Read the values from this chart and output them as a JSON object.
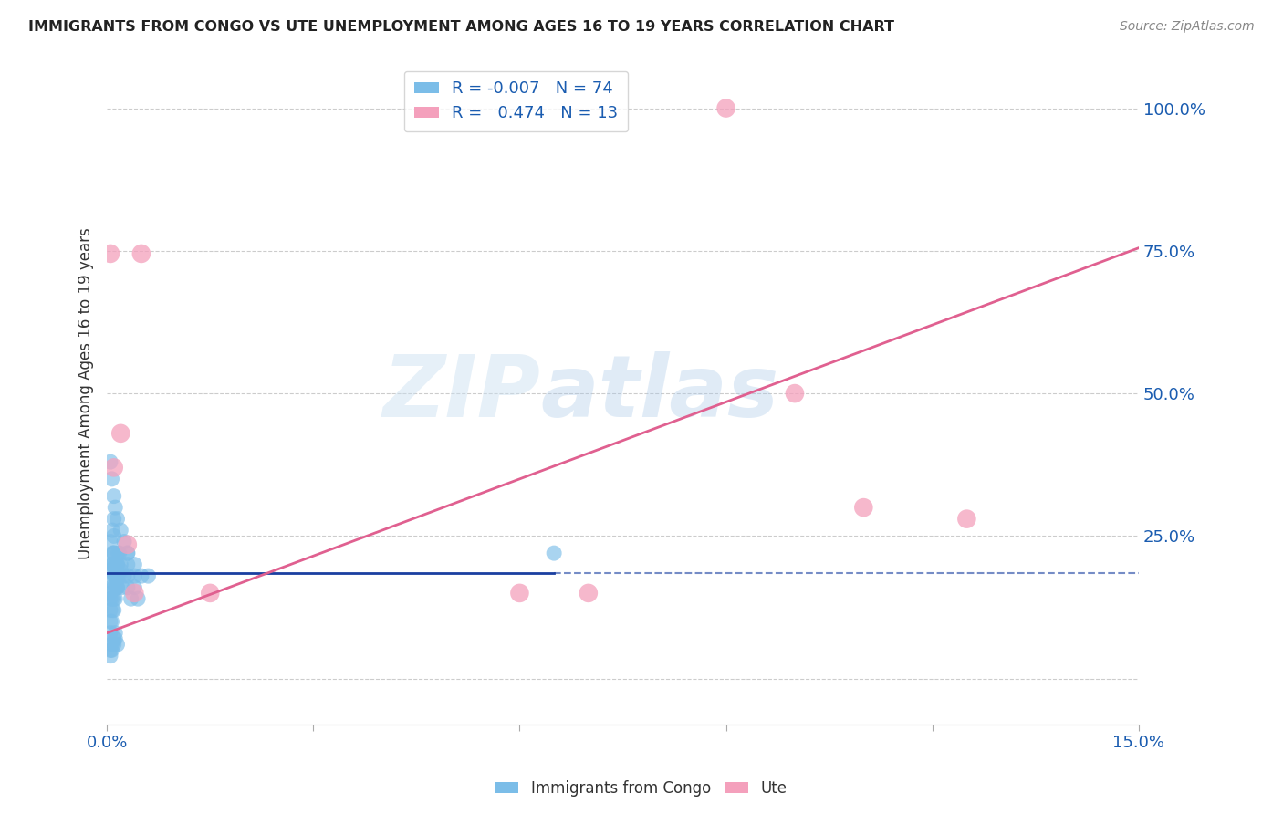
{
  "title": "IMMIGRANTS FROM CONGO VS UTE UNEMPLOYMENT AMONG AGES 16 TO 19 YEARS CORRELATION CHART",
  "source": "Source: ZipAtlas.com",
  "ylabel": "Unemployment Among Ages 16 to 19 years",
  "xlim": [
    0.0,
    0.15
  ],
  "ylim": [
    -0.08,
    1.08
  ],
  "xticks": [
    0.0,
    0.03,
    0.06,
    0.09,
    0.12,
    0.15
  ],
  "xtick_labels": [
    "0.0%",
    "",
    "",
    "",
    "",
    "15.0%"
  ],
  "ytick_right": [
    0.0,
    0.25,
    0.5,
    0.75,
    1.0
  ],
  "ytick_right_labels": [
    "",
    "25.0%",
    "50.0%",
    "75.0%",
    "100.0%"
  ],
  "congo_color": "#7bbde8",
  "ute_color": "#f4a0bc",
  "congo_line_color": "#1a3fa0",
  "ute_line_color": "#e06090",
  "congo_R": -0.007,
  "ute_R": 0.474,
  "background_color": "#ffffff",
  "grid_color": "#cccccc",
  "watermark_zip": "ZIP",
  "watermark_atlas": "atlas",
  "legend_label_congo": "R = -0.007   N = 74",
  "legend_label_ute": "R =   0.474   N = 13",
  "congo_x": [
    0.0005,
    0.0008,
    0.001,
    0.0012,
    0.0015,
    0.0018,
    0.002,
    0.0005,
    0.0007,
    0.0009,
    0.001,
    0.0012,
    0.0015,
    0.0005,
    0.0008,
    0.001,
    0.0013,
    0.0016,
    0.0005,
    0.0007,
    0.001,
    0.0012,
    0.0015,
    0.0005,
    0.0008,
    0.001,
    0.0013,
    0.0005,
    0.0007,
    0.001,
    0.0012,
    0.0005,
    0.0008,
    0.001,
    0.0013,
    0.0016,
    0.0005,
    0.0007,
    0.001,
    0.0012,
    0.0015,
    0.0018,
    0.002,
    0.0022,
    0.0025,
    0.003,
    0.003,
    0.003,
    0.003,
    0.0035,
    0.004,
    0.004,
    0.004,
    0.0045,
    0.005,
    0.0005,
    0.0007,
    0.001,
    0.0012,
    0.0015,
    0.0005,
    0.0007,
    0.001,
    0.0012,
    0.0005,
    0.0007,
    0.001,
    0.0012,
    0.0015,
    0.002,
    0.0025,
    0.003,
    0.006,
    0.065
  ],
  "congo_y": [
    0.2,
    0.22,
    0.25,
    0.18,
    0.2,
    0.22,
    0.19,
    0.15,
    0.17,
    0.2,
    0.22,
    0.18,
    0.2,
    0.24,
    0.26,
    0.28,
    0.2,
    0.22,
    0.14,
    0.16,
    0.18,
    0.2,
    0.16,
    0.19,
    0.2,
    0.22,
    0.18,
    0.12,
    0.14,
    0.16,
    0.18,
    0.1,
    0.12,
    0.14,
    0.16,
    0.18,
    0.08,
    0.1,
    0.12,
    0.14,
    0.16,
    0.18,
    0.2,
    0.16,
    0.18,
    0.2,
    0.22,
    0.18,
    0.16,
    0.14,
    0.18,
    0.2,
    0.16,
    0.14,
    0.18,
    0.05,
    0.06,
    0.07,
    0.08,
    0.06,
    0.04,
    0.05,
    0.06,
    0.07,
    0.38,
    0.35,
    0.32,
    0.3,
    0.28,
    0.26,
    0.24,
    0.22,
    0.18,
    0.22
  ],
  "ute_x": [
    0.0005,
    0.001,
    0.002,
    0.003,
    0.004,
    0.005,
    0.015,
    0.06,
    0.07,
    0.09,
    0.1,
    0.11,
    0.125
  ],
  "ute_y": [
    0.745,
    0.37,
    0.43,
    0.235,
    0.15,
    0.745,
    0.15,
    0.15,
    0.15,
    1.0,
    0.5,
    0.3,
    0.28
  ],
  "ute_line_x0": 0.0,
  "ute_line_y0": 0.08,
  "ute_line_x1": 0.15,
  "ute_line_y1": 0.755,
  "congo_line_solid_x1": 0.065,
  "congo_line_y": 0.185
}
